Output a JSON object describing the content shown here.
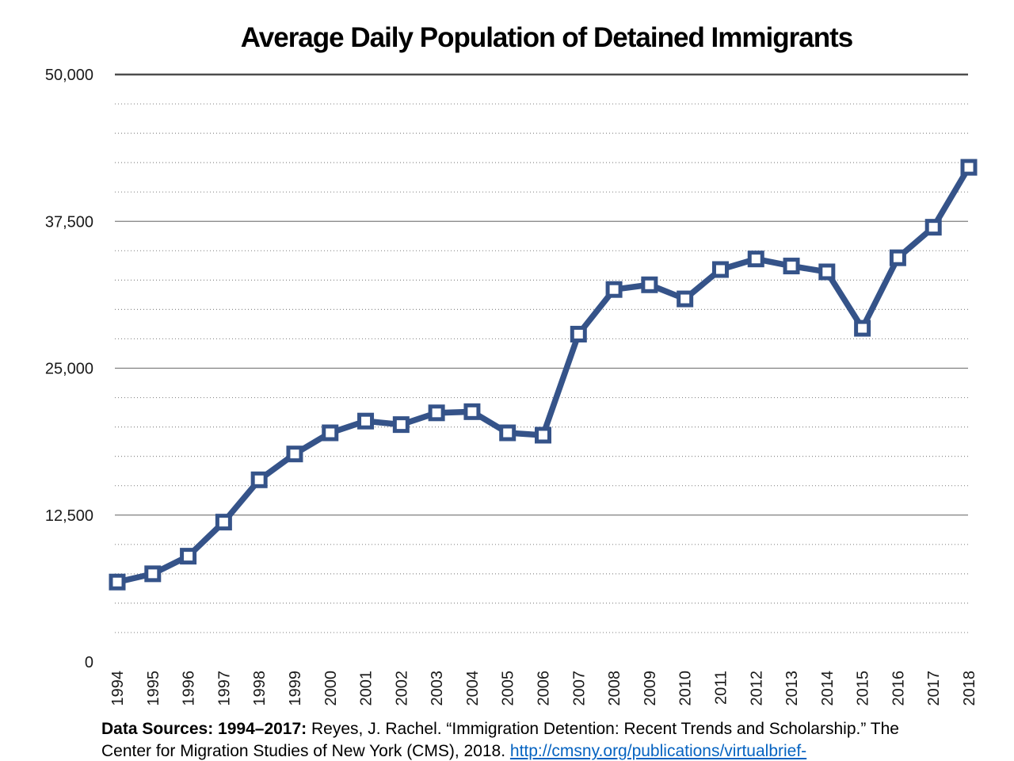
{
  "title": "Average Daily Population of Detained Immigrants",
  "chart_data": {
    "type": "line",
    "title": "Average Daily Population of Detained Immigrants",
    "xlabel": "",
    "ylabel": "",
    "x": [
      1994,
      1995,
      1996,
      1997,
      1998,
      1999,
      2000,
      2001,
      2002,
      2003,
      2004,
      2005,
      2006,
      2007,
      2008,
      2009,
      2010,
      2011,
      2012,
      2013,
      2014,
      2015,
      2016,
      2017,
      2018
    ],
    "series": [
      {
        "name": "Average daily population of detained immigrants",
        "values": [
          6800,
          7500,
          9000,
          11900,
          15500,
          17700,
          19500,
          20500,
          20200,
          21200,
          21300,
          19500,
          19300,
          27900,
          31700,
          32100,
          30900,
          33400,
          34300,
          33700,
          33200,
          28400,
          34400,
          37000,
          42100
        ]
      }
    ],
    "ylim": [
      0,
      50000
    ],
    "yticks_major": [
      {
        "label": "0",
        "value": 0
      },
      {
        "label": "12,500",
        "value": 12500
      },
      {
        "label": "25,000",
        "value": 25000
      },
      {
        "label": "37,500",
        "value": 37500
      },
      {
        "label": "50,000",
        "value": 50000
      }
    ],
    "y_minor_step": 2500,
    "grid": "major-solid-gray, minor-dotted, no-zero-baseline",
    "legend": "none",
    "line_color": "#355389",
    "marker": "open-square-white-fill",
    "gridline_color_major": "#7f7f7f",
    "gridline_color_minor": "#8c8c8c",
    "gridline_color_top": "#4d4d4d"
  },
  "footer": {
    "line1_bold": "Data Sources: 1994–2017:",
    "line1_rest": " Reyes, J. Rachel. “Immigration Detention: Recent Trends and Scholarship.” The",
    "line2_text": "Center for Migration Studies of New York (CMS), 2018. ",
    "link_text": "http://cmsny.org/publications/virtualbrief-",
    "link_color": "#0563C1"
  }
}
